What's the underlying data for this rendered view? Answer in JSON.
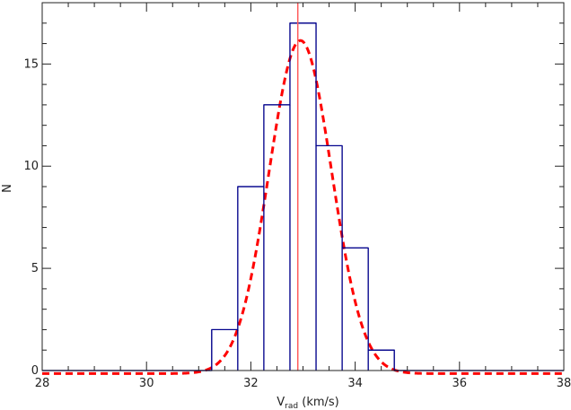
{
  "chart_data": {
    "type": "histogram",
    "title": "",
    "xlabel": {
      "main": "V",
      "sub": "rad",
      "unit": " (km/s)"
    },
    "ylabel": "N",
    "xlim": [
      28,
      38
    ],
    "ylim": [
      0,
      18
    ],
    "xticks": [
      28,
      30,
      32,
      34,
      36,
      38
    ],
    "yticks": [
      0,
      5,
      10,
      15
    ],
    "grid": false,
    "histogram": {
      "color": "#00008b",
      "bin_edges": [
        28.0,
        31.25,
        31.75,
        32.25,
        32.75,
        33.25,
        33.75,
        34.25,
        34.75,
        38.0
      ],
      "counts": [
        0,
        2,
        9,
        13,
        17,
        11,
        6,
        1,
        0
      ]
    },
    "gaussian_fit": {
      "color": "#ff0000",
      "style": "dashed",
      "amplitude": 16.3,
      "mean": 32.95,
      "sigma": 0.6,
      "offset": -0.15
    },
    "mean_line": {
      "color": "#ff5a5a",
      "x": 32.9
    }
  }
}
